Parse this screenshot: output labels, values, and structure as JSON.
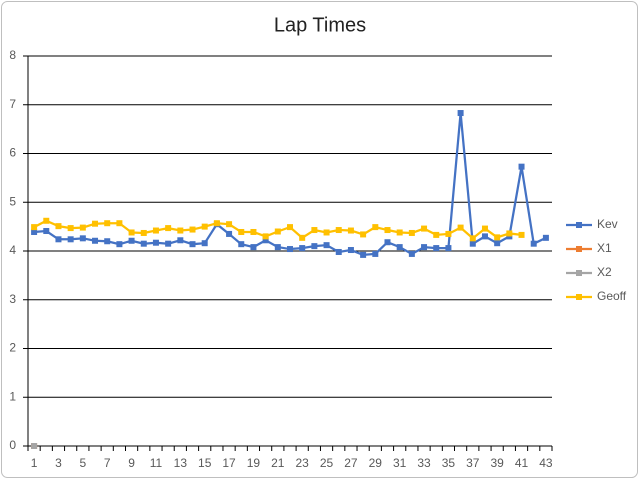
{
  "chart_data": {
    "type": "line",
    "title": "Lap Times",
    "categories": [
      1,
      null,
      3,
      null,
      5,
      null,
      7,
      null,
      9,
      null,
      11,
      null,
      13,
      null,
      15,
      null,
      17,
      null,
      19,
      null,
      21,
      null,
      23,
      null,
      25,
      null,
      27,
      null,
      29,
      null,
      31,
      null,
      33,
      null,
      35,
      null,
      37,
      null,
      39,
      null,
      41,
      null,
      43
    ],
    "series": [
      {
        "name": "Kev",
        "color": "#4472c4",
        "values": [
          4.39,
          4.41,
          4.24,
          4.24,
          4.26,
          4.21,
          4.2,
          4.14,
          4.21,
          4.15,
          4.17,
          4.15,
          4.22,
          4.14,
          4.16,
          4.55,
          4.35,
          4.14,
          4.08,
          4.22,
          4.08,
          4.04,
          4.06,
          4.1,
          4.12,
          3.98,
          4.02,
          3.92,
          3.94,
          4.18,
          4.08,
          3.94,
          4.08,
          4.06,
          4.06,
          6.83,
          4.15,
          4.3,
          4.16,
          4.3,
          5.73,
          4.15,
          4.27
        ]
      },
      {
        "name": "X1",
        "color": "#ed7d31",
        "values": [
          0,
          null,
          null,
          null,
          null,
          null,
          null,
          null,
          null,
          null,
          null,
          null,
          null,
          null,
          null,
          null,
          null,
          null,
          null,
          null,
          null,
          null,
          null,
          null,
          null,
          null,
          null,
          null,
          null,
          null,
          null,
          null,
          null,
          null,
          null,
          null,
          null,
          null,
          null,
          null,
          null,
          null,
          null
        ]
      },
      {
        "name": "X2",
        "color": "#a5a5a5",
        "values": [
          0,
          null,
          null,
          null,
          null,
          null,
          null,
          null,
          null,
          null,
          null,
          null,
          null,
          null,
          null,
          null,
          null,
          null,
          null,
          null,
          null,
          null,
          null,
          null,
          null,
          null,
          null,
          null,
          null,
          null,
          null,
          null,
          null,
          null,
          null,
          null,
          null,
          null,
          null,
          null,
          null,
          null,
          null
        ]
      },
      {
        "name": "Geoff",
        "color": "#ffc000",
        "values": [
          4.49,
          4.62,
          4.51,
          4.47,
          4.48,
          4.56,
          4.57,
          4.57,
          4.38,
          4.37,
          4.42,
          4.47,
          4.42,
          4.44,
          4.5,
          4.57,
          4.55,
          4.39,
          4.39,
          4.3,
          4.4,
          4.49,
          4.27,
          4.43,
          4.38,
          4.43,
          4.42,
          4.34,
          4.49,
          4.43,
          4.38,
          4.37,
          4.46,
          4.33,
          4.35,
          4.48,
          4.26,
          4.46,
          4.28,
          4.36,
          4.33,
          null,
          null
        ]
      }
    ],
    "ylim": [
      0,
      8
    ],
    "yticks": [
      0,
      1,
      2,
      3,
      4,
      5,
      6,
      7,
      8
    ],
    "grid": true,
    "legend": "right"
  }
}
